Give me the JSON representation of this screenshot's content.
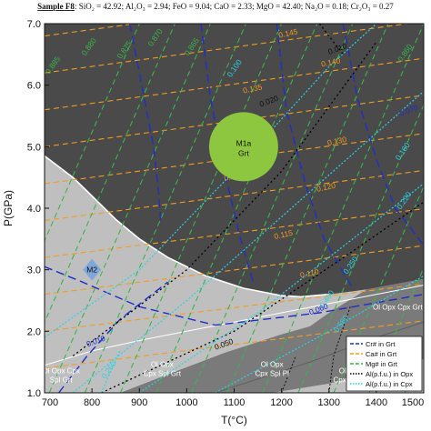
{
  "chart_data": {
    "type": "line",
    "header": {
      "sample": "Sample F8",
      "composition": "SiO₂ = 42.92; Al₂O₃ = 2.94; FeO = 9.04; CaO = 2.33; MgO = 42.40; Na₂O = 0.18; Cr₂O₃ = 0.27"
    },
    "xlabel": "T(°C)",
    "ylabel": "P(GPa)",
    "xlim": [
      700,
      1500
    ],
    "ylim": [
      1.0,
      7.0
    ],
    "x_ticks": [
      700,
      800,
      900,
      1000,
      1100,
      1200,
      1300,
      1400,
      1500
    ],
    "y_ticks": [
      1.0,
      2.0,
      3.0,
      4.0,
      5.0,
      6.0,
      7.0
    ],
    "x_tick_labels": [
      "700",
      "800",
      "900",
      "1000",
      "1100",
      "1200",
      "1300",
      "1400",
      "1500"
    ],
    "y_tick_labels": [
      "1.0",
      "2.0",
      "3.0",
      "4.0",
      "5.0",
      "6.0",
      "7.0"
    ],
    "fields": [
      {
        "label": "Ol Opx Cpx Grt",
        "color": "#4a4a4a"
      },
      {
        "label": "Ol Opx Cpx Spl Grt",
        "color": "#bfbfbf"
      },
      {
        "label": "Ol Opx Cpx Grt",
        "color": "#7a7a7a"
      },
      {
        "label": "Ol Opx Cpx Spl Grt",
        "color": "#7a7a7a"
      },
      {
        "label": "Ol Opx Cpx Spl Pl",
        "color": "#bfbfbf"
      }
    ],
    "field_labels": [
      {
        "lines": [
          "Ol Opx Cpx Grt"
        ],
        "T": 1445,
        "P": 2.35
      },
      {
        "lines": [
          "Ol Opx Cpx",
          "Spl Grt"
        ],
        "T": 735,
        "P": 1.32
      },
      {
        "lines": [
          "Ol Opx",
          "Cpx Spl Grt"
        ],
        "T": 948,
        "P": 1.42
      },
      {
        "lines": [
          "Ol Opx",
          "Cpx Spl Pl"
        ],
        "T": 1180,
        "P": 1.42
      },
      {
        "lines": [
          "Ol Opx",
          "Cpx Spl Pl"
        ],
        "T": 1345,
        "P": 1.32
      }
    ],
    "samples": [
      {
        "lines": [
          "M1a",
          "Grt"
        ],
        "T": 1120,
        "P": 5.0,
        "marker": "circle",
        "color": "#8dc63f"
      },
      {
        "lines": [
          "M2"
        ],
        "T": 800,
        "P": 3.0,
        "marker": "diamond",
        "color": "#7fa7d9"
      }
    ],
    "legend": {
      "placement": "bottom-right",
      "entries": [
        {
          "label": "Cr# in Grt",
          "color": "#1f2ec8",
          "style": "dashed"
        },
        {
          "label": "Ca# in Grt",
          "color": "#f39c1e",
          "style": "dashed"
        },
        {
          "label": "Mg# in Grt",
          "color": "#39b54a",
          "style": "dashed"
        },
        {
          "label": "Al(p.f.u.) in Opx",
          "color": "#000000",
          "style": "dotted"
        },
        {
          "label": "Al(p.f.u.) in Cpx",
          "color": "#29d3e6",
          "style": "dotted"
        }
      ]
    },
    "isopleths": {
      "ca_grt": [
        {
          "value": "0.145",
          "T": 1215,
          "P": 6.8
        },
        {
          "value": "0.140",
          "T": 1305,
          "P": 6.33
        },
        {
          "value": "0.135",
          "T": 1140,
          "P": 5.9
        },
        {
          "value": "0.130",
          "T": 1318,
          "P": 5.05
        },
        {
          "value": "0.125",
          "T": 1100,
          "P": 4.48
        },
        {
          "value": "0.120",
          "T": 1295,
          "P": 4.3
        },
        {
          "value": "0.115",
          "T": 1205,
          "P": 3.53
        },
        {
          "value": "0.110",
          "T": 1260,
          "P": 2.9
        }
      ],
      "mg_grt": [
        {
          "value": "0.885",
          "T": 722,
          "P": 6.3
        },
        {
          "value": "0.880",
          "T": 798,
          "P": 6.6
        },
        {
          "value": "0.875",
          "T": 873,
          "P": 6.55
        },
        {
          "value": "0.870",
          "T": 938,
          "P": 6.75
        },
        {
          "value": "0.865",
          "T": 1015,
          "P": 6.6
        },
        {
          "value": "0.860",
          "T": 1465,
          "P": 6.5
        }
      ],
      "al_opx": [
        {
          "value": "0.010",
          "T": 1320,
          "P": 6.55
        },
        {
          "value": "0.020",
          "T": 1175,
          "P": 5.7
        },
        {
          "value": "0.050",
          "T": 1080,
          "P": 1.75
        }
      ],
      "al_cpx": [
        {
          "value": "0.100",
          "T": 1105,
          "P": 6.25
        },
        {
          "value": "0.160",
          "T": 1460,
          "P": 4.9
        },
        {
          "value": "0.220",
          "T": 1463,
          "P": 4.1
        },
        {
          "value": "0.250",
          "T": 1350,
          "P": 3.05
        },
        {
          "value": "0.400",
          "T": 1300,
          "P": 2.5
        },
        {
          "value": "0.580",
          "T": 1330,
          "P": 2.1
        },
        {
          "value": "0.260",
          "T": 840,
          "P": 1.35
        }
      ],
      "cr_grt": [
        {
          "value": "0.070",
          "T": 1470,
          "P": 5.55
        },
        {
          "value": "0.060",
          "T": 1280,
          "P": 2.32
        },
        {
          "value": "0.010",
          "T": 810,
          "P": 1.8
        }
      ]
    }
  }
}
